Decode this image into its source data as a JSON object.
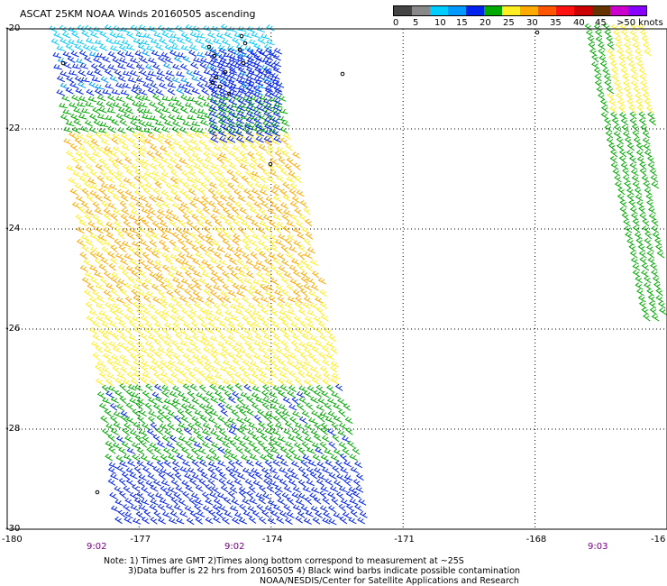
{
  "header": {
    "title": "ASCAT 25KM NOAA Winds 20160505 ascending"
  },
  "legend": {
    "labels": [
      "0",
      "5",
      "10",
      "15",
      "20",
      "25",
      "30",
      "35",
      "40",
      "45",
      ">50 knots"
    ],
    "colors": [
      "#444444",
      "#888888",
      "#00ccff",
      "#0099ff",
      "#0022ee",
      "#00aa00",
      "#ffee22",
      "#ffaa00",
      "#ff5500",
      "#ff1111",
      "#cc0000",
      "#663300",
      "#cc00cc",
      "#8800ff"
    ]
  },
  "axes": {
    "lat_labels": [
      "-20",
      "-22",
      "-24",
      "-26",
      "-28",
      "-30"
    ],
    "lon_labels": [
      "-180",
      "-177",
      "-174",
      "-171",
      "-168",
      "-16"
    ],
    "time_labels": [
      "9:02",
      "9:02",
      "9:03"
    ]
  },
  "notes": {
    "line1": "Note: 1) Times are GMT 2)Times along bottom correspond to measurement at ~25S",
    "line2": "3)Data buffer is 22 hrs from 20160505 4) Black wind barbs indicate possible contamination",
    "line3": "NOAA/NESDIS/Center for Satellite Applications and Research"
  },
  "map": {
    "lat_range": [
      -30,
      -20
    ],
    "lon_range": [
      -180,
      -165
    ],
    "grid": true,
    "grid_style": "dotted",
    "swaths": [
      {
        "name": "main",
        "bands": [
          "#00ccff",
          "#0022ee",
          "#00aa00",
          "#ffee22",
          "#ffaa00",
          "#ffee22",
          "#00aa00",
          "#0022ee"
        ]
      },
      {
        "name": "east",
        "bands": [
          "#ffee22",
          "#00aa00"
        ]
      }
    ]
  }
}
